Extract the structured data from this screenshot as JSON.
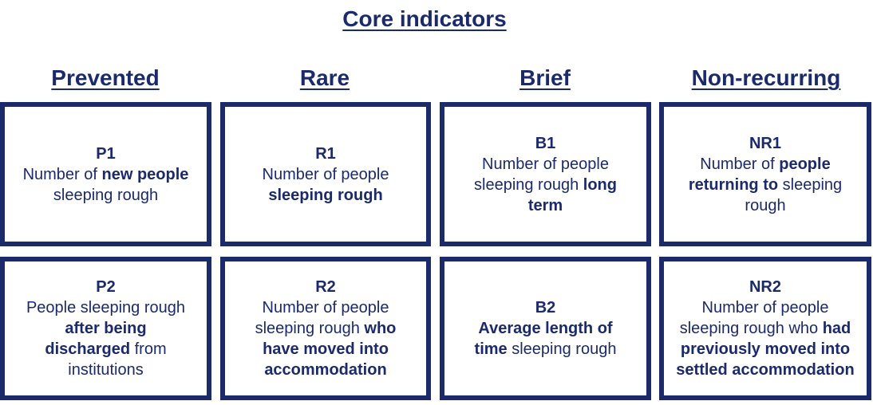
{
  "title": "Core indicators",
  "columns": [
    {
      "header": "Prevented",
      "cells": [
        {
          "code": "P1",
          "parts": [
            {
              "text": "Number of ",
              "bold": false
            },
            {
              "text": "new people",
              "bold": true
            },
            {
              "text": " sleeping rough",
              "bold": false
            }
          ]
        },
        {
          "code": "P2",
          "parts": [
            {
              "text": "People sleeping rough ",
              "bold": false
            },
            {
              "text": "after being discharged",
              "bold": true
            },
            {
              "text": " from institutions",
              "bold": false
            }
          ]
        }
      ]
    },
    {
      "header": "Rare",
      "cells": [
        {
          "code": "R1",
          "parts": [
            {
              "text": "Number of people ",
              "bold": false
            },
            {
              "text": "sleeping rough",
              "bold": true
            }
          ]
        },
        {
          "code": "R2",
          "parts": [
            {
              "text": "Number of people sleeping rough ",
              "bold": false
            },
            {
              "text": "who have moved into accommodation",
              "bold": true
            }
          ]
        }
      ]
    },
    {
      "header": "Brief",
      "cells": [
        {
          "code": "B1",
          "parts": [
            {
              "text": "Number of people sleeping rough ",
              "bold": false
            },
            {
              "text": "long term",
              "bold": true
            }
          ]
        },
        {
          "code": "B2",
          "parts": [
            {
              "text": "Average length of time",
              "bold": true
            },
            {
              "text": " sleeping rough",
              "bold": false
            }
          ]
        }
      ]
    },
    {
      "header": "Non-recurring",
      "cells": [
        {
          "code": "NR1",
          "parts": [
            {
              "text": "Number of ",
              "bold": false
            },
            {
              "text": "people returning to",
              "bold": true
            },
            {
              "text": " sleeping rough",
              "bold": false
            }
          ]
        },
        {
          "code": "NR2",
          "parts": [
            {
              "text": "Number of people sleeping rough who ",
              "bold": false
            },
            {
              "text": "had previously moved into settled accommodation",
              "bold": true
            }
          ]
        }
      ]
    }
  ],
  "colors": {
    "navy": "#1b2a6b",
    "background": "#ffffff"
  }
}
